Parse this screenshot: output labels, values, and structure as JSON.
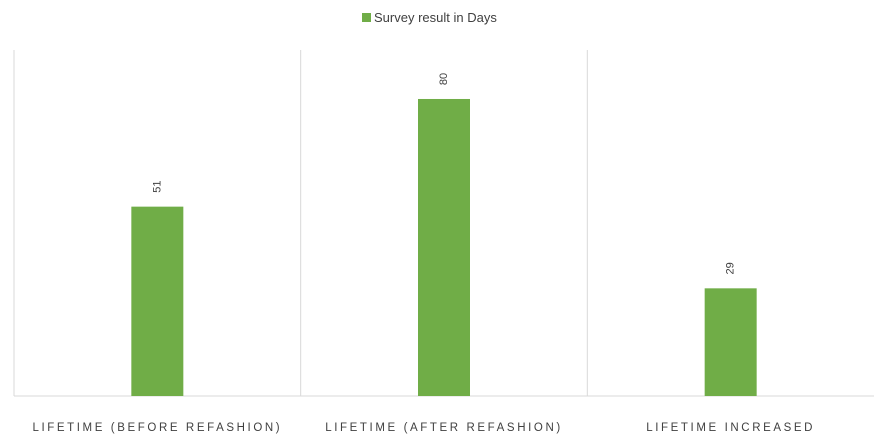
{
  "chart_data": {
    "type": "bar",
    "categories": [
      "LIFETIME (BEFORE REFASHION)",
      "LIFETIME (AFTER REFASHION)",
      "LIFETIME INCREASED"
    ],
    "series": [
      {
        "name": "Survey result in Days",
        "values": [
          51,
          80,
          29
        ],
        "color": "#70ad47"
      }
    ],
    "data_labels": [
      "51",
      "80",
      "29"
    ],
    "ylim": [
      0,
      94
    ],
    "grid": false,
    "legend_position": "top",
    "data_label_orientation": "rotated"
  }
}
